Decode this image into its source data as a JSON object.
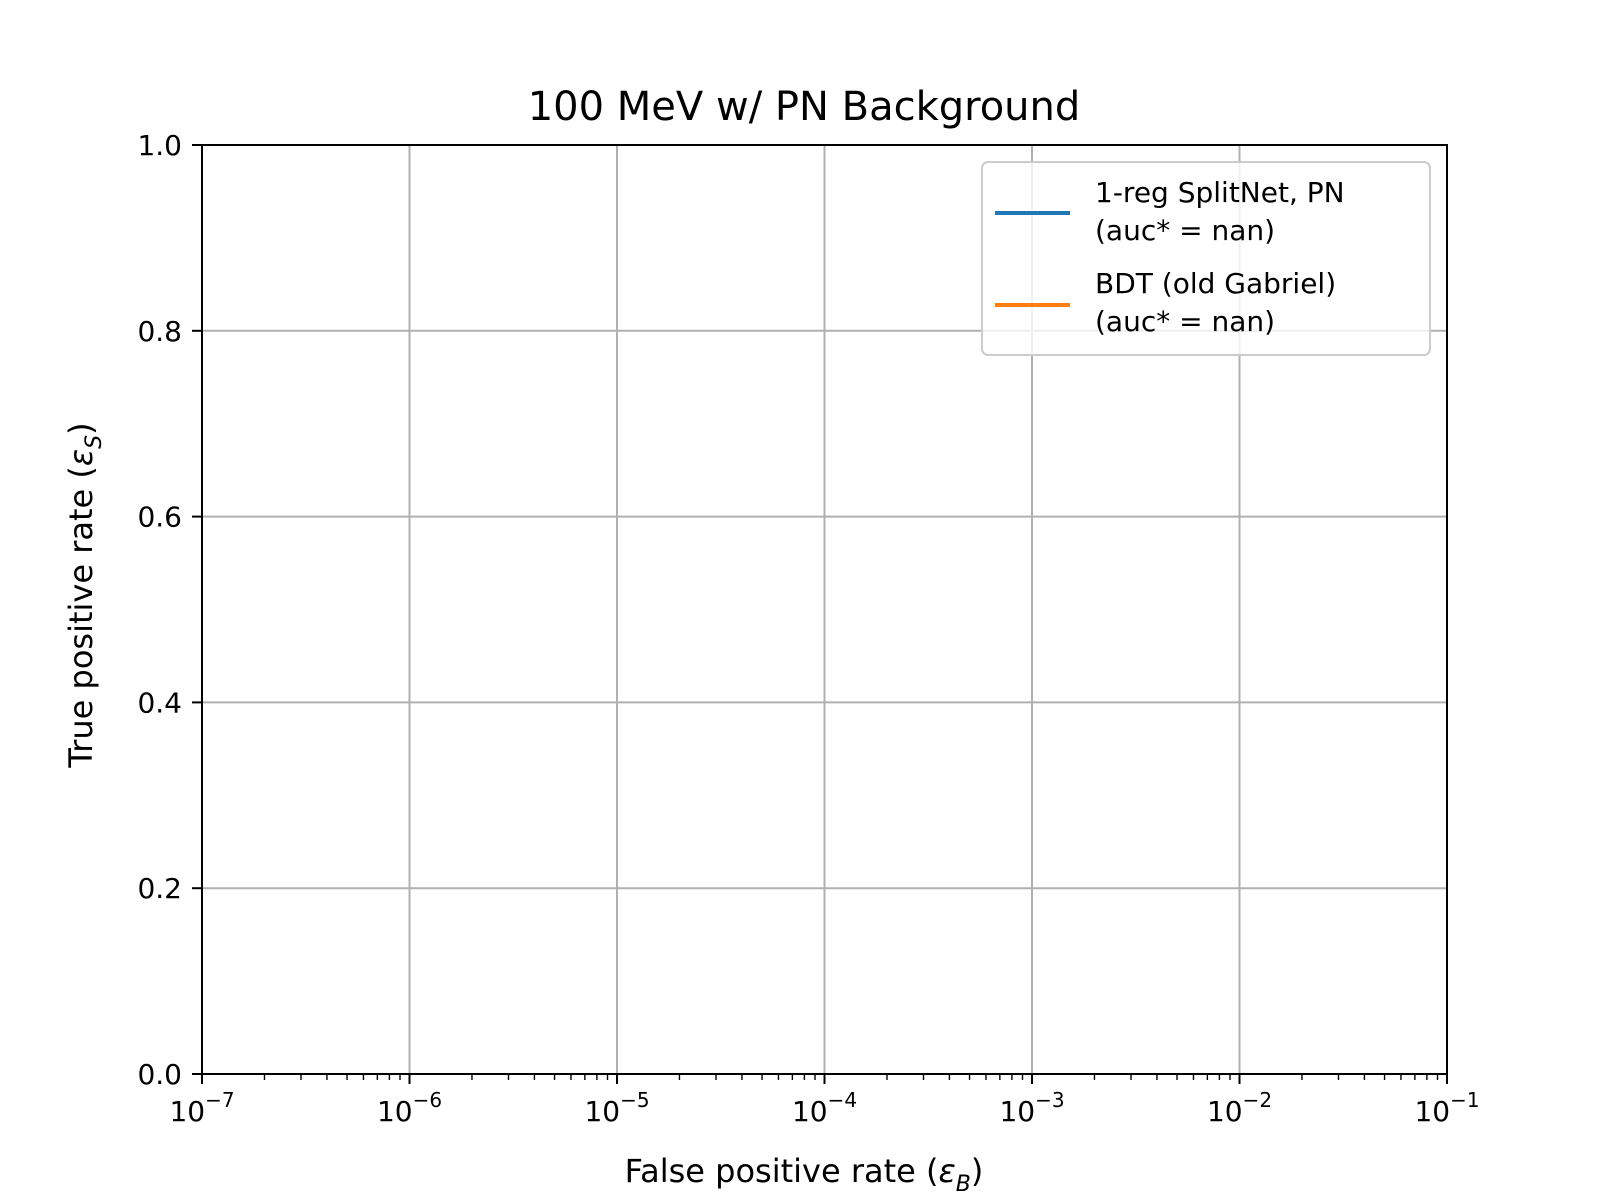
{
  "chart_data": {
    "type": "line",
    "title": "100 MeV w/ PN Background",
    "xlabel": {
      "prefix": "False positive rate (",
      "symbol": "ε",
      "subscript": "B",
      "suffix": ")"
    },
    "ylabel": {
      "prefix": "True positive rate (",
      "symbol": "ε",
      "subscript": "S",
      "suffix": ")"
    },
    "x_scale": "log",
    "xlim": [
      1e-07,
      0.1
    ],
    "ylim": [
      0.0,
      1.0
    ],
    "grid": true,
    "legend_position": "top-right",
    "x_ticks": [
      {
        "value": 1e-07,
        "base": "10",
        "exp": "−7"
      },
      {
        "value": 1e-06,
        "base": "10",
        "exp": "−6"
      },
      {
        "value": 1e-05,
        "base": "10",
        "exp": "−5"
      },
      {
        "value": 0.0001,
        "base": "10",
        "exp": "−4"
      },
      {
        "value": 0.001,
        "base": "10",
        "exp": "−3"
      },
      {
        "value": 0.01,
        "base": "10",
        "exp": "−2"
      },
      {
        "value": 0.1,
        "base": "10",
        "exp": "−1"
      }
    ],
    "y_ticks": [
      {
        "value": 0.0,
        "label": "0.0"
      },
      {
        "value": 0.2,
        "label": "0.2"
      },
      {
        "value": 0.4,
        "label": "0.4"
      },
      {
        "value": 0.6,
        "label": "0.6"
      },
      {
        "value": 0.8,
        "label": "0.8"
      },
      {
        "value": 1.0,
        "label": "1.0"
      }
    ],
    "series": [
      {
        "name": [
          "1-reg SplitNet, PN",
          "(auc* = nan)"
        ],
        "color": "#1f77b4",
        "x": [],
        "y": []
      },
      {
        "name": [
          "BDT (old Gabriel)",
          "(auc* = nan)"
        ],
        "color": "#ff7f0e",
        "x": [],
        "y": []
      }
    ]
  }
}
